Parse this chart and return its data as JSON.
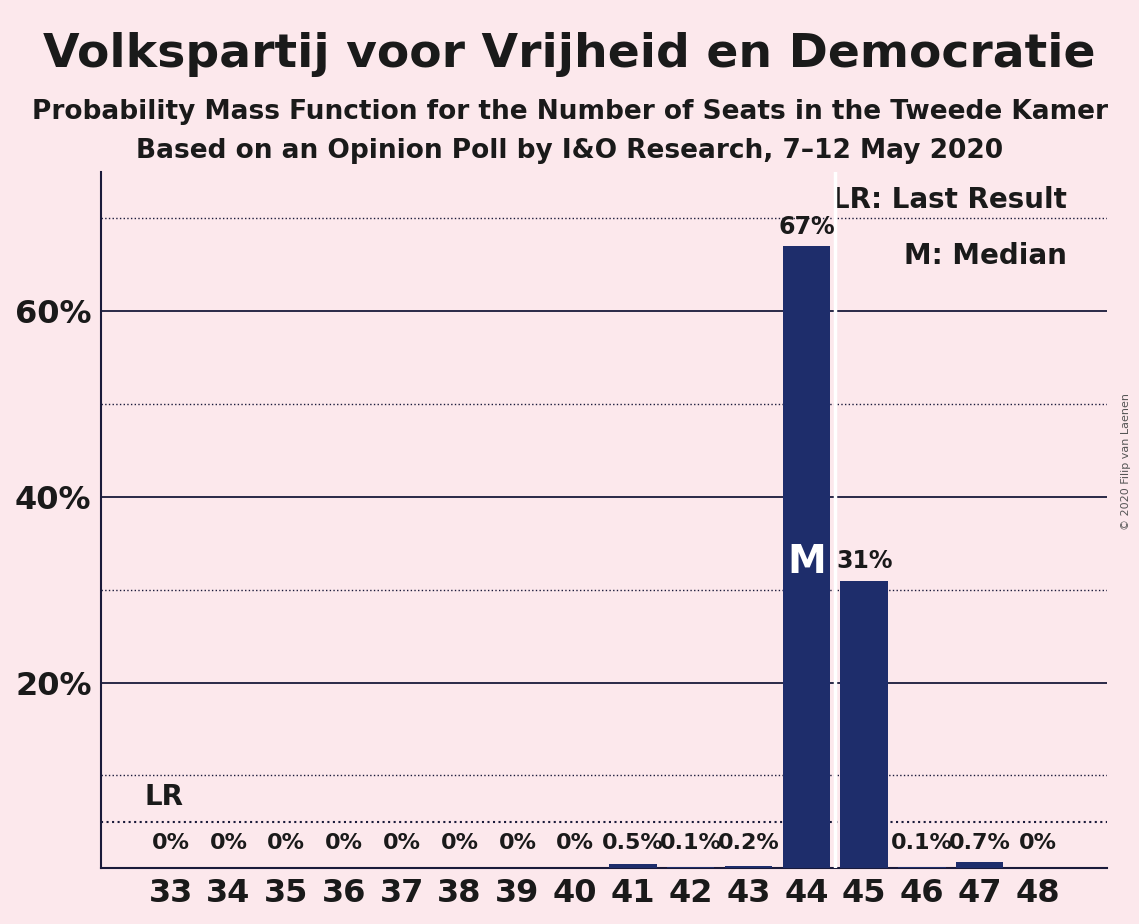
{
  "title": "Volkspartij voor Vrijheid en Democratie",
  "subtitle1": "Probability Mass Function for the Number of Seats in the Tweede Kamer",
  "subtitle2": "Based on an Opinion Poll by I&O Research, 7–12 May 2020",
  "copyright": "© 2020 Filip van Laenen",
  "background_color": "#fce8ec",
  "bar_color": "#1e2d6b",
  "categories": [
    33,
    34,
    35,
    36,
    37,
    38,
    39,
    40,
    41,
    42,
    43,
    44,
    45,
    46,
    47,
    48
  ],
  "values": [
    0.0,
    0.0,
    0.0,
    0.0,
    0.0,
    0.0,
    0.0,
    0.0,
    0.5,
    0.1,
    0.2,
    67.0,
    31.0,
    0.1,
    0.7,
    0.0
  ],
  "bar_labels": [
    "0%",
    "0%",
    "0%",
    "0%",
    "0%",
    "0%",
    "0%",
    "0%",
    "0.5%",
    "0.1%",
    "0.2%",
    "",
    "",
    "0.1%",
    "0.7%",
    "0%"
  ],
  "bar_labels_above": [
    "",
    "",
    "",
    "",
    "",
    "",
    "",
    "",
    "",
    "",
    "",
    "67%",
    "31%",
    "",
    "",
    ""
  ],
  "median_idx": 11,
  "lr_line_value": 5.0,
  "ylim_max": 75,
  "solid_yticks": [
    20,
    40,
    60
  ],
  "dotted_yticks": [
    10,
    30,
    50,
    70
  ],
  "ytick_labels_vals": [
    20,
    40,
    60
  ],
  "ytick_labels_str": [
    "20%",
    "40%",
    "60%"
  ],
  "legend_line1": "LR: Last Result",
  "legend_line2": "M: Median",
  "title_fontsize": 34,
  "subtitle_fontsize": 19,
  "axis_tick_fontsize": 23,
  "bar_label_fontsize": 16,
  "legend_fontsize": 20,
  "lr_fontsize": 20,
  "m_fontsize": 28
}
